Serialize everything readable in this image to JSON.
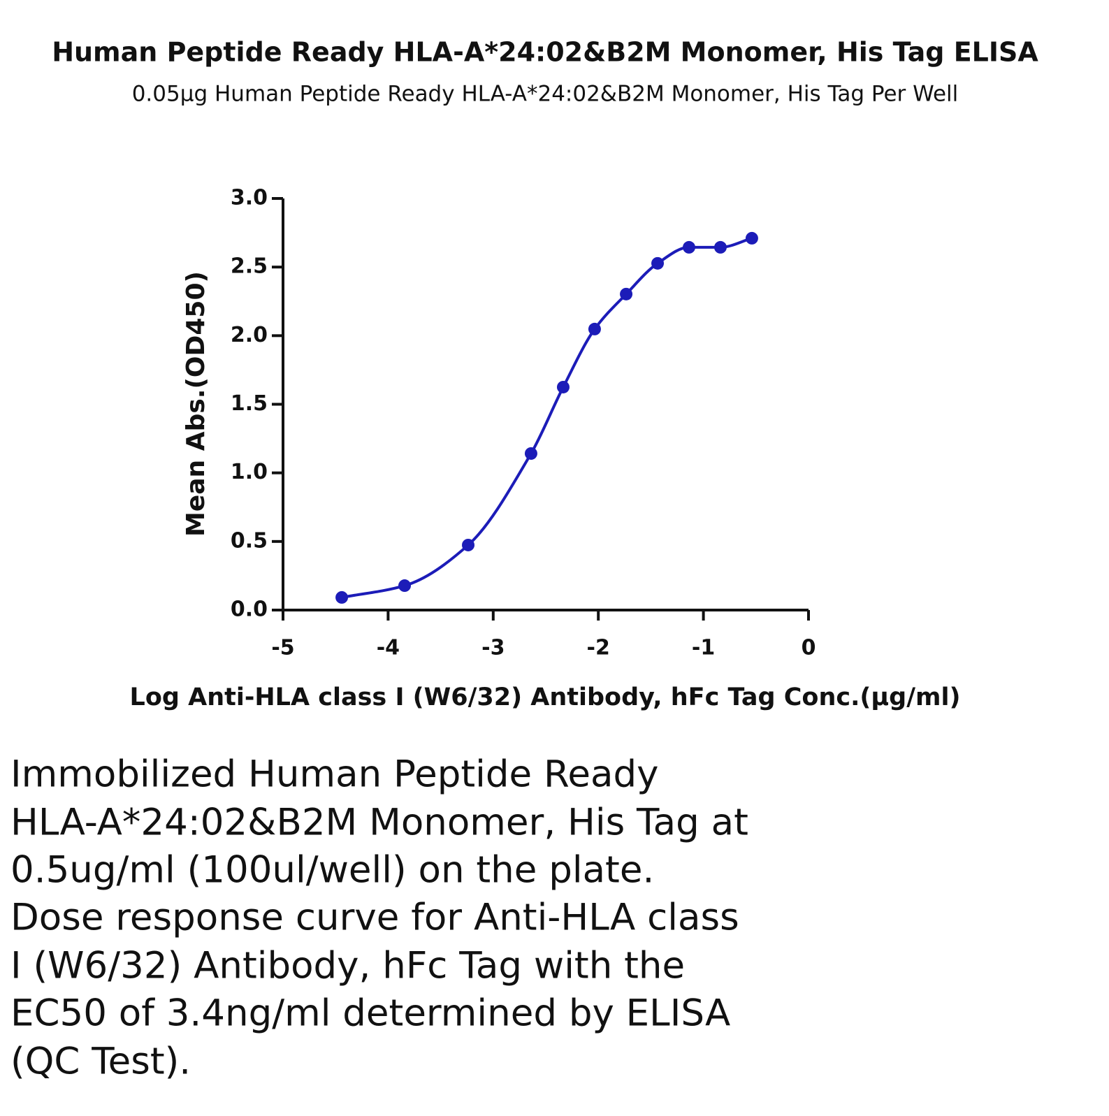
{
  "chart_data": {
    "type": "line",
    "title": "Human Peptide Ready HLA-A*24:02&B2M Monomer, His Tag ELISA",
    "subtitle": "0.05μg Human Peptide Ready HLA-A*24:02&B2M Monomer, His Tag Per Well",
    "x_label": "Log Anti-HLA class I (W6/32) Antibody, hFc Tag Conc.(μg/ml)",
    "y_label": "Mean Abs.(OD450)",
    "x": [
      -4.441,
      -3.843,
      -3.238,
      -2.64,
      -2.334,
      -2.035,
      -1.735,
      -1.436,
      -1.137,
      -0.838,
      -0.539
    ],
    "series": [
      {
        "color": "#1c1cb8",
        "values": [
          0.092,
          0.178,
          0.474,
          1.141,
          1.625,
          2.048,
          2.303,
          2.527,
          2.644,
          2.644,
          2.71
        ]
      }
    ],
    "xlim": [
      -5,
      0
    ],
    "xticks": [
      -5,
      -4,
      -3,
      -2,
      -1,
      0
    ],
    "ylim": [
      0,
      3
    ],
    "yticks": [
      {
        "value": 0,
        "label": "0.0"
      },
      {
        "value": 0.5,
        "label": "0.5"
      },
      {
        "value": 1,
        "label": "1.0"
      },
      {
        "value": 1.5,
        "label": "1.5"
      },
      {
        "value": 2,
        "label": "2.0"
      },
      {
        "value": 2.5,
        "label": "2.5"
      },
      {
        "value": 3,
        "label": "3.0"
      }
    ]
  },
  "caption": [
    "Immobilized Human Peptide Ready",
    "HLA-A*24:02&B2M Monomer, His Tag at",
    "0.5ug/ml (100ul/well) on the plate.",
    "Dose response curve for Anti-HLA class",
    "I (W6/32) Antibody, hFc Tag with the",
    "EC50 of 3.4ng/ml determined by ELISA",
    "(QC Test)."
  ]
}
